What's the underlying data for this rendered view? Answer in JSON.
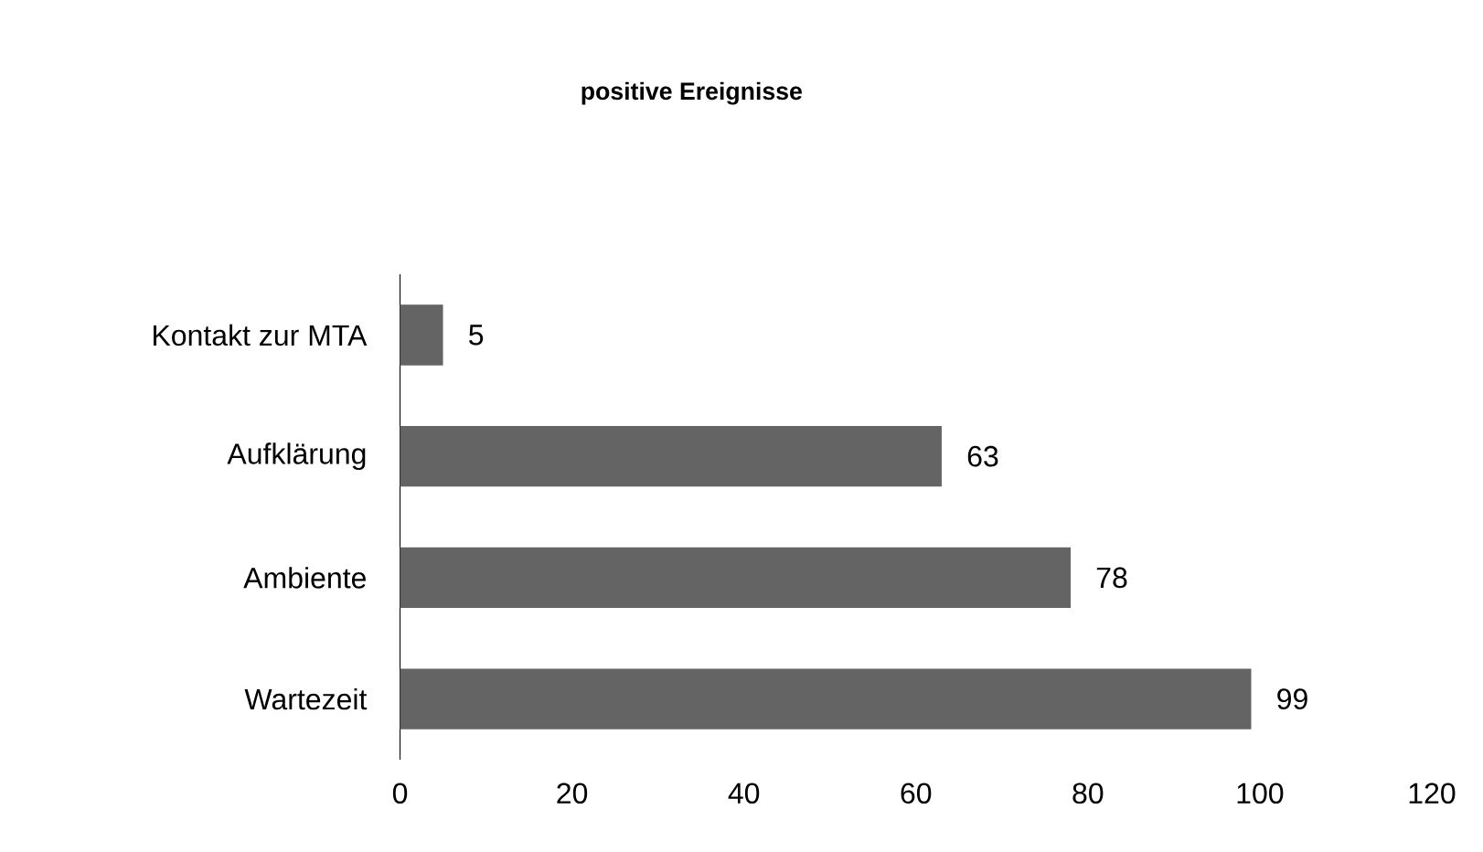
{
  "chart_data": {
    "type": "bar",
    "orientation": "horizontal",
    "title": "positive Ereignisse",
    "categories": [
      "Kontakt zur MTA",
      "Aufklärung",
      "Ambiente",
      "Wartezeit"
    ],
    "values": [
      5,
      63,
      78,
      99
    ],
    "color": "#646464",
    "data_labels": true,
    "xlim": [
      0,
      120
    ],
    "xticks": [
      0,
      20,
      40,
      60,
      80,
      100,
      120
    ],
    "grid": false
  }
}
